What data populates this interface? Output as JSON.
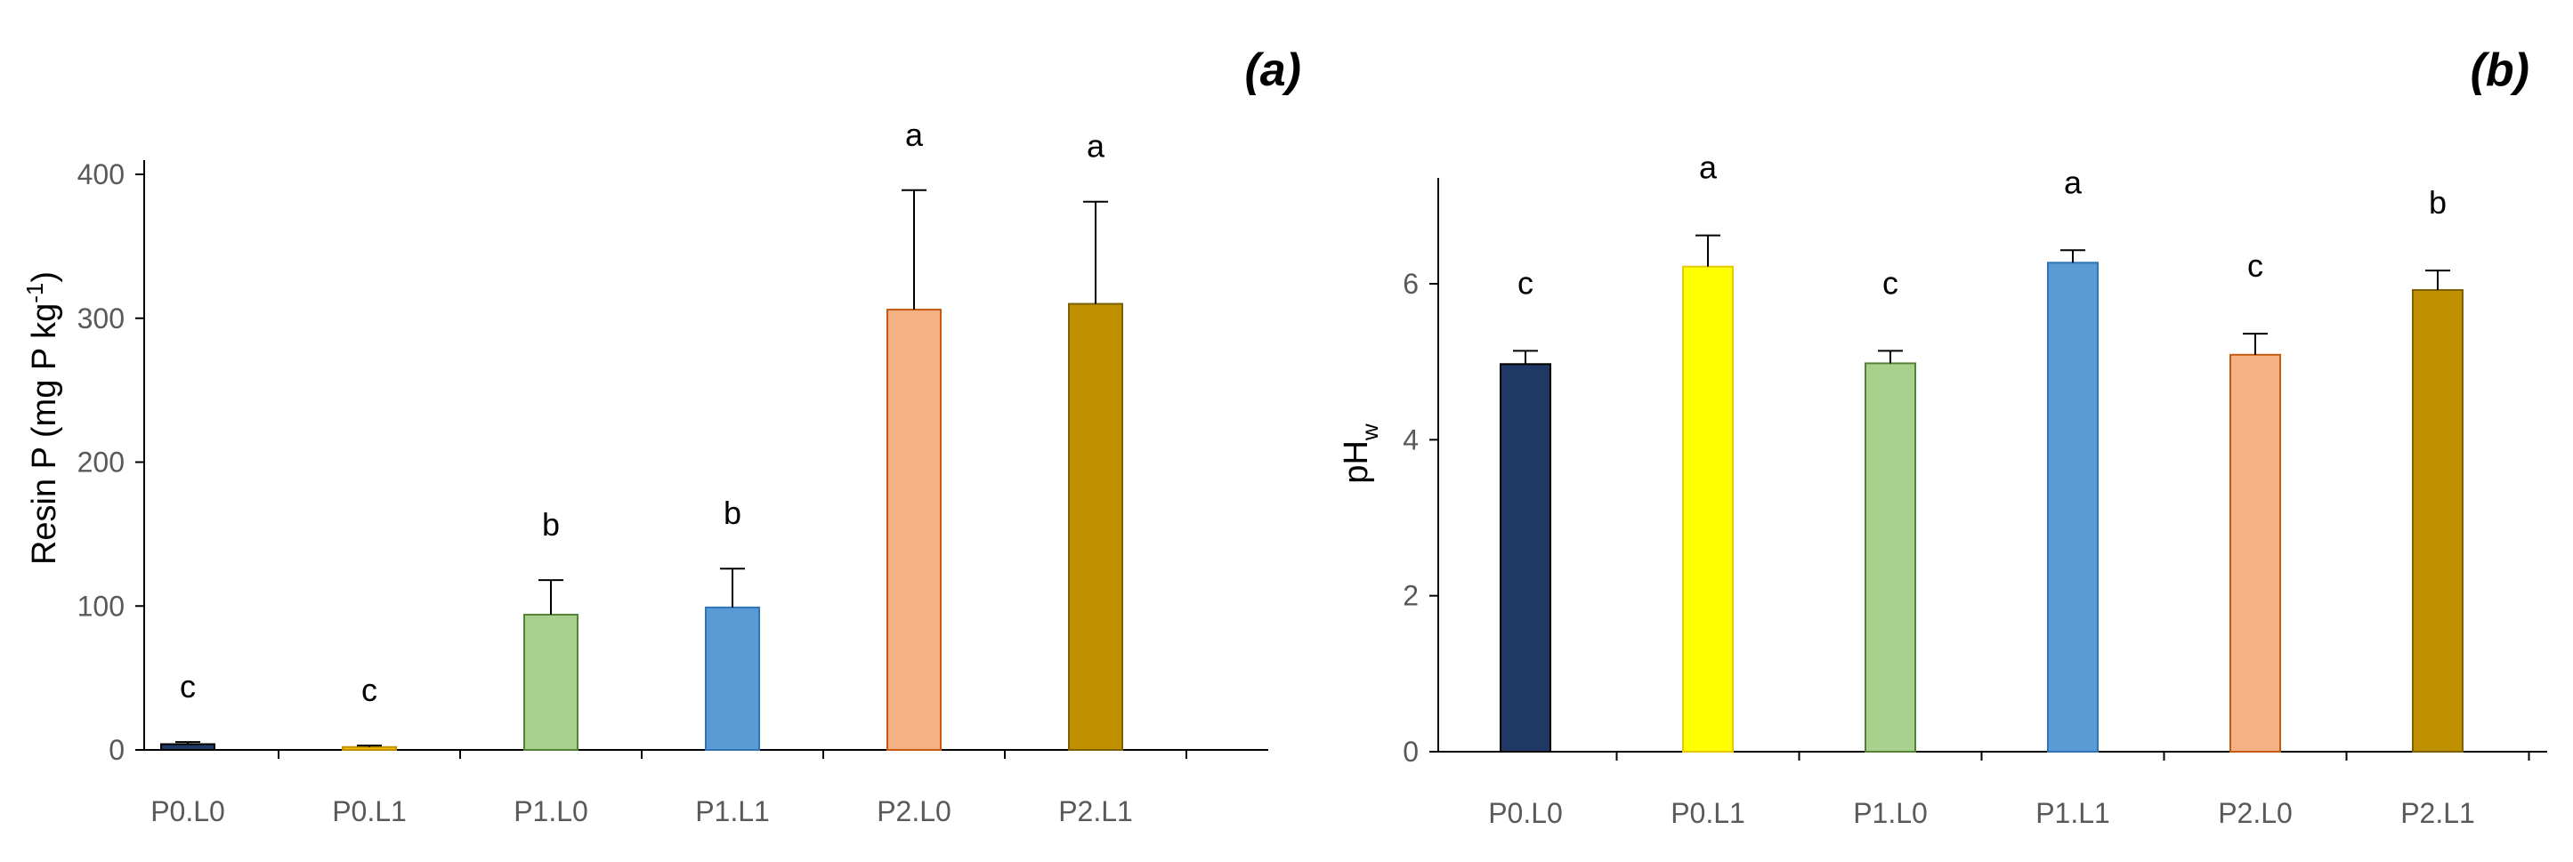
{
  "chart_data": [
    {
      "type": "bar",
      "panel_label": "(a)",
      "title": "",
      "xlabel": "",
      "ylabel": {
        "text": "Resin P (mg P kg",
        "sup": "-1",
        "tail": ")"
      },
      "ylim": [
        0,
        400
      ],
      "yticks": [
        0,
        100,
        200,
        300,
        400
      ],
      "categories": [
        "P0.L0",
        "P0.L1",
        "P1.L0",
        "P1.L1",
        "P2.L0",
        "P2.L1"
      ],
      "values": [
        4,
        2,
        94,
        99,
        306,
        310
      ],
      "errors": [
        1.5,
        1,
        24,
        27,
        83,
        71
      ],
      "significance": [
        "c",
        "c",
        "b",
        "b",
        "a",
        "a"
      ],
      "fill_colors": [
        "#1F3864",
        "#FFC000",
        "#A9D18E",
        "#5B9BD5",
        "#F4B183",
        "#BF9000"
      ],
      "edge_colors": [
        "#000000",
        "#C09000",
        "#548235",
        "#2E75B6",
        "#C55A11",
        "#7F6000"
      ],
      "grid": false,
      "legend": "none"
    },
    {
      "type": "bar",
      "panel_label": "(b)",
      "title": "",
      "xlabel": "",
      "ylabel": {
        "text": "pH",
        "sub": "w"
      },
      "ylim": [
        0,
        7.3
      ],
      "yticks": [
        0,
        2,
        4,
        6
      ],
      "categories": [
        "P0.L0",
        "P0.L1",
        "P1.L0",
        "P1.L1",
        "P2.L0",
        "P2.L1"
      ],
      "values": [
        4.97,
        6.22,
        4.98,
        6.27,
        5.09,
        5.92
      ],
      "errors": [
        0.17,
        0.4,
        0.16,
        0.16,
        0.27,
        0.25
      ],
      "significance": [
        "c",
        "a",
        "c",
        "a",
        "c",
        "b"
      ],
      "fill_colors": [
        "#203864",
        "#FFFF00",
        "#A9D18E",
        "#5B9BD5",
        "#F4B183",
        "#BF9000"
      ],
      "edge_colors": [
        "#000000",
        "#E6C800",
        "#548235",
        "#2E75B6",
        "#C55A11",
        "#7F6000"
      ],
      "grid": false,
      "legend": "none"
    }
  ]
}
